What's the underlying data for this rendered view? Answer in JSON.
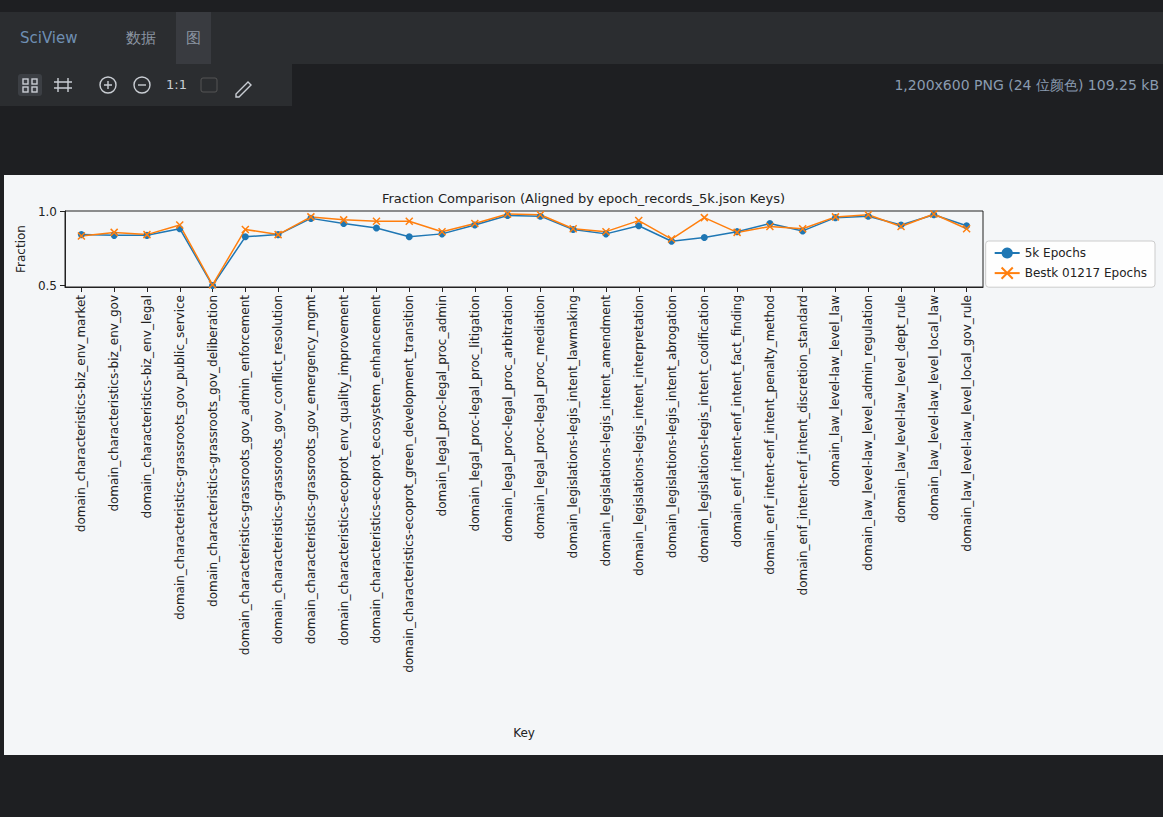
{
  "window": {
    "tabs": [
      "SciView",
      "数据",
      "图"
    ],
    "toolbar_label": "1:1",
    "image_info": "1,200x600 PNG (24 位颜色) 109.25 kB"
  },
  "chart_data": {
    "type": "line",
    "title": "Fraction Comparison (Aligned by epoch_records_5k.json Keys)",
    "x_label": "Key",
    "y_label": "Fraction",
    "categories": [
      "domain_characteristics-biz_env_market",
      "domain_characteristics-biz_env_gov",
      "domain_characteristics-biz_env_legal",
      "domain_characteristics-grassroots_gov_public_service",
      "domain_characteristics-grassroots_gov_deliberation",
      "domain_characteristics-grassroots_gov_admin_enforcement",
      "domain_characteristics-grassroots_gov_conflict_resolution",
      "domain_characteristics-grassroots_gov_emergency_mgmt",
      "domain_characteristics-ecoprot_env_quality_improvement",
      "domain_characteristics-ecoprot_ecosystem_enhancement",
      "domain_characteristics-ecoprot_green_development_transition",
      "domain_legal_proc-legal_proc_admin",
      "domain_legal_proc-legal_proc_litigation",
      "domain_legal_proc-legal_proc_arbitration",
      "domain_legal_proc-legal_proc_mediation",
      "domain_legislations-legis_intent_lawmaking",
      "domain_legislations-legis_intent_amendment",
      "domain_legislations-legis_intent_interpretation",
      "domain_legislations-legis_intent_abrogation",
      "domain_legislations-legis_intent_codification",
      "domain_enf_intent-enf_intent_fact_finding",
      "domain_enf_intent-enf_intent_penalty_method",
      "domain_enf_intent-enf_intent_discretion_standard",
      "domain_law_level-law_level_law",
      "domain_law_level-law_level_admin_regulation",
      "domain_law_level-law_level_dept_rule",
      "domain_law_level-law_level_local_law",
      "domain_law_level-law_level_local_gov_rule"
    ],
    "series": [
      {
        "name": "5k Epochs",
        "color": "#1f77b4",
        "marker": "o",
        "values": [
          0.845,
          0.84,
          0.84,
          0.885,
          0.5,
          0.83,
          0.845,
          0.955,
          0.92,
          0.89,
          0.83,
          0.85,
          0.91,
          0.975,
          0.97,
          0.88,
          0.85,
          0.905,
          0.8,
          0.825,
          0.865,
          0.92,
          0.87,
          0.96,
          0.97,
          0.91,
          0.98,
          0.905
        ]
      },
      {
        "name": "Bestk 01217 Epochs",
        "color": "#ff7f0e",
        "marker": "x",
        "values": [
          0.835,
          0.86,
          0.845,
          0.91,
          0.505,
          0.88,
          0.845,
          0.965,
          0.945,
          0.935,
          0.935,
          0.865,
          0.92,
          0.985,
          0.98,
          0.885,
          0.865,
          0.94,
          0.815,
          0.96,
          0.86,
          0.9,
          0.885,
          0.965,
          0.98,
          0.9,
          0.985,
          0.885
        ]
      }
    ],
    "ylim": [
      0.49,
      1.005
    ],
    "yticks": [
      0.5,
      {
        "value": 1,
        "label": "1.0"
      }
    ],
    "grid": false,
    "legend": "right"
  }
}
